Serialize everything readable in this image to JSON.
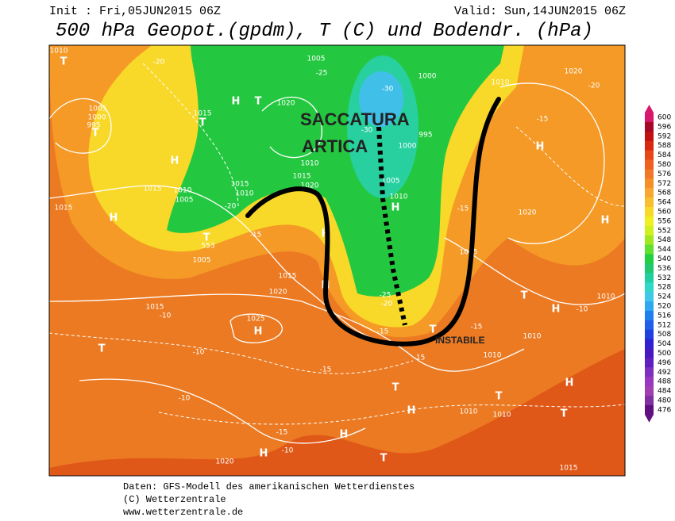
{
  "header": {
    "init": "Init : Fri,05JUN2015 06Z",
    "valid": "Valid: Sun,14JUN2015 06Z",
    "title": "500 hPa Geopot.(gpdm), T (C) und Bodendr. (hPa)"
  },
  "annotations": {
    "trough_line1": "SACCATURA",
    "trough_line2": "ARTICA",
    "unstable": "INSTABILE"
  },
  "map": {
    "labels": [
      "1010",
      "T",
      "-20",
      "1005",
      "-25",
      "-30",
      "1000",
      "1020",
      "-20",
      "1010",
      "1005",
      "1000",
      "995",
      "T",
      "H",
      "T",
      "1020",
      "1015",
      "H",
      "-15",
      "-30",
      "995",
      "1000",
      "H",
      "T",
      "1015",
      "1010",
      "1015",
      "1010",
      "1005",
      "1015",
      "1010",
      "1020",
      "-20",
      "1005",
      "1010",
      "H",
      "1020",
      "H",
      "1015",
      "H",
      "-15",
      "T",
      "553",
      "1005",
      "1015",
      "1020",
      "H",
      "H",
      "-15",
      "1005",
      "T",
      "H",
      "-10",
      "1010",
      "1015",
      "-10",
      "1025",
      "H",
      "T",
      "-10",
      "-25",
      "-20",
      "-15",
      "T",
      "-15",
      "1010",
      "1010",
      "-15",
      "-15",
      "T",
      "H",
      "T",
      "H",
      "T",
      "-10",
      "1010",
      "1010",
      "H",
      "-15",
      "H",
      "-10",
      "1020",
      "T",
      "1015"
    ]
  },
  "colorbar": {
    "ticks": [
      600,
      596,
      592,
      588,
      584,
      580,
      576,
      572,
      568,
      564,
      560,
      556,
      552,
      548,
      544,
      540,
      536,
      532,
      528,
      524,
      520,
      516,
      512,
      508,
      504,
      500,
      496,
      492,
      488,
      484,
      480,
      476
    ],
    "colors": [
      "#d8186a",
      "#a80828",
      "#c01010",
      "#d82810",
      "#e84818",
      "#f06020",
      "#f07828",
      "#f59028",
      "#f8a830",
      "#f8c030",
      "#f8d828",
      "#f0f020",
      "#d0f020",
      "#a0e820",
      "#60e030",
      "#20d040",
      "#20c870",
      "#20d0a0",
      "#30d8c8",
      "#40c8e8",
      "#30a8f0",
      "#2080f0",
      "#2060e8",
      "#2040e0",
      "#3020d0",
      "#4818c0",
      "#6020c0",
      "#8030c0",
      "#9838c0",
      "#a040b0",
      "#8030a0",
      "#601080"
    ]
  },
  "footer": {
    "line1": "Daten: GFS-Modell des amerikanischen Wetterdienstes",
    "line2": "(C) Wetterzentrale",
    "line3": "www.wetterzentrale.de"
  }
}
